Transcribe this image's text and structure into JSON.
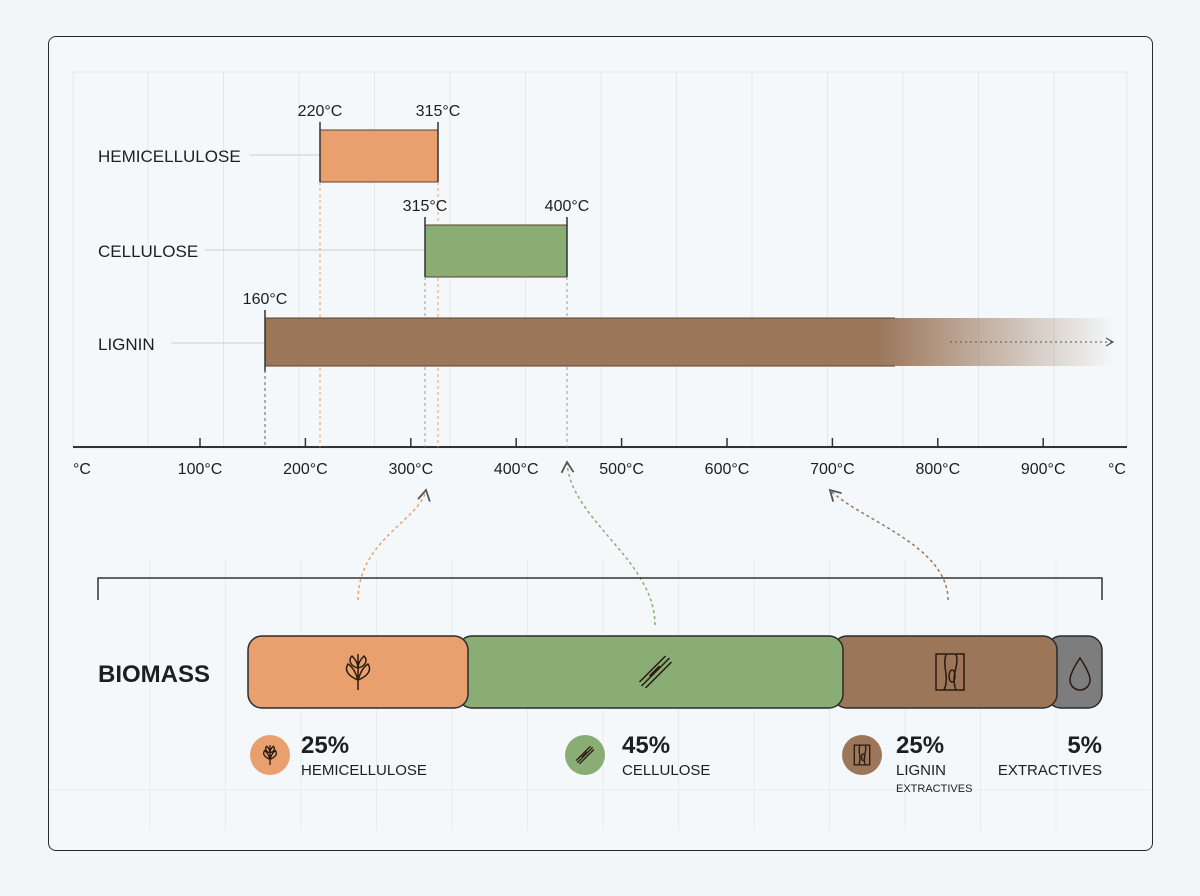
{
  "chart_data": {
    "type": "range-bar",
    "axis": {
      "unit_label_left": "°C",
      "unit_label_right": "°C",
      "ticks": [
        "100°C",
        "200°C",
        "300°C",
        "400°C",
        "500°C",
        "600°C",
        "700°C",
        "800°C",
        "900°C"
      ]
    },
    "ranges": [
      {
        "name": "HEMICELLULOSE",
        "start_label": "220°C",
        "end_label": "315°C",
        "start": 220,
        "end": 315,
        "color": "#e9a06e"
      },
      {
        "name": "CELLULOSE",
        "start_label": "315°C",
        "end_label": "400°C",
        "start": 315,
        "end": 400,
        "color": "#89ad74"
      },
      {
        "name": "LIGNIN",
        "start_label": "160°C",
        "start": 160,
        "end": null,
        "open_ended": true,
        "color": "#9b7659"
      }
    ],
    "composition": {
      "title": "BIOMASS",
      "segments": [
        {
          "name": "HEMICELLULOSE",
          "percent_label": "25%",
          "percent": 25,
          "color": "#e9a06e",
          "icon": "leaf-sprig-icon"
        },
        {
          "name": "CELLULOSE",
          "percent_label": "45%",
          "percent": 45,
          "color": "#89ad74",
          "icon": "fiber-strand-icon"
        },
        {
          "name": "LIGNIN",
          "percent_label": "25%",
          "percent": 25,
          "color": "#9b7659",
          "icon": "wood-grain-icon",
          "sublabel": "EXTRACTIVES"
        },
        {
          "name": "EXTRACTIVES",
          "percent_label": "5%",
          "percent": 5,
          "color": "#7d7d7d",
          "icon": "droplet-icon"
        }
      ]
    }
  }
}
